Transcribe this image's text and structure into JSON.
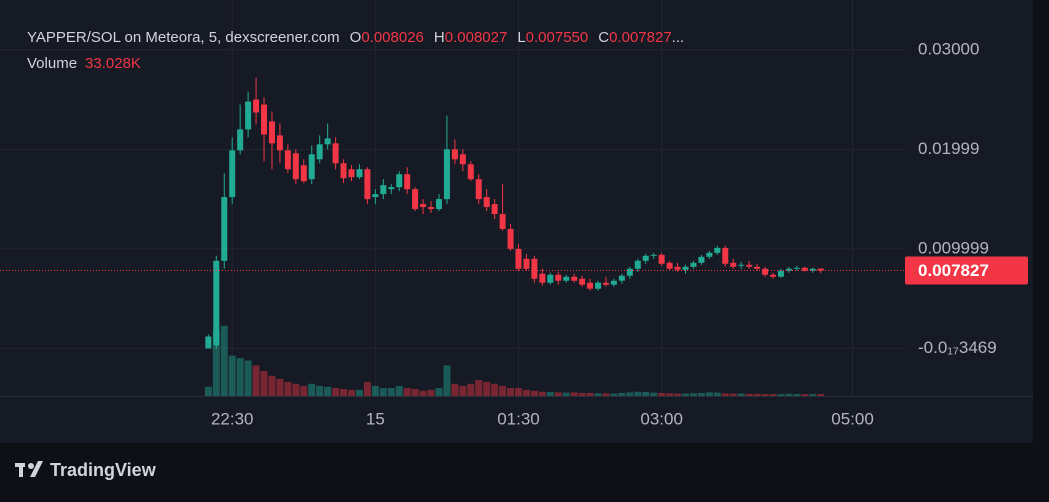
{
  "chart_data": {
    "type": "candlestick",
    "title": "YAPPER/SOL on Meteora, 5, dexscreener.com",
    "ohlc_letters": [
      "O",
      "H",
      "L",
      "C"
    ],
    "ohlc_printed": [
      "0.008026",
      "0.008027",
      "0.007550",
      "0.007827"
    ],
    "ellipsis": "...",
    "up_color": "#22ab94",
    "down_color": "#f23645",
    "x": [
      1335,
      1340,
      1345,
      1350,
      1355,
      1360,
      1365,
      1370,
      1375,
      1380,
      1385,
      1390,
      1395,
      1400,
      1405,
      1410,
      1415,
      1420,
      1425,
      1430,
      1435,
      1440,
      1445,
      1450,
      1455,
      1460,
      1465,
      1470,
      1475,
      1480,
      1485,
      1490,
      1495,
      1500,
      1505,
      1510,
      1515,
      1520,
      1525,
      1530,
      1535,
      1540,
      1545,
      1550,
      1555,
      1560,
      1565,
      1570,
      1575,
      1580,
      1585,
      1590,
      1595,
      1600,
      1605,
      1610,
      1615,
      1620,
      1625,
      1630,
      1635,
      1640,
      1645,
      1650,
      1655,
      1660,
      1665,
      1670,
      1675,
      1680,
      1685,
      1690,
      1695,
      1700,
      1705,
      1710,
      1715,
      1720
    ],
    "open": [
      0,
      0.0003,
      0.0088,
      0.0152,
      0.0199,
      0.022,
      0.025,
      0.0245,
      0.0228,
      0.0214,
      0.0199,
      0.0196,
      0.0184,
      0.017,
      0.019,
      0.0205,
      0.0206,
      0.0186,
      0.018,
      0.0172,
      0.018,
      0.0152,
      0.0155,
      0.016,
      0.0162,
      0.0175,
      0.016,
      0.0145,
      0.0142,
      0.014,
      0.015,
      0.02,
      0.0195,
      0.0185,
      0.017,
      0.0152,
      0.0145,
      0.0135,
      0.012,
      0.01,
      0.009,
      0.009,
      0.0075,
      0.0066,
      0.0074,
      0.0068,
      0.0072,
      0.007,
      0.0066,
      0.006,
      0.0066,
      0.0064,
      0.0068,
      0.0073,
      0.008,
      0.0088,
      0.0093,
      0.0094,
      0.0086,
      0.0082,
      0.0079,
      0.0082,
      0.0086,
      0.0092,
      0.0096,
      0.0101,
      0.0086,
      0.0083,
      0.0084,
      0.0082,
      0.008,
      0.0074,
      0.0072,
      0.0078,
      0.008,
      0.0081,
      0.0078,
      0.008026
    ],
    "high": [
      0.0014,
      0.0093,
      0.0176,
      0.0212,
      0.0245,
      0.0258,
      0.0272,
      0.0252,
      0.0238,
      0.0226,
      0.0205,
      0.02,
      0.019,
      0.0204,
      0.0214,
      0.0226,
      0.0212,
      0.019,
      0.0184,
      0.0185,
      0.0182,
      0.016,
      0.017,
      0.0165,
      0.0178,
      0.0182,
      0.0162,
      0.015,
      0.0148,
      0.0155,
      0.0234,
      0.021,
      0.02,
      0.0188,
      0.0175,
      0.016,
      0.015,
      0.0165,
      0.0125,
      0.0105,
      0.0095,
      0.0093,
      0.008,
      0.0076,
      0.0077,
      0.0074,
      0.0075,
      0.0073,
      0.007,
      0.0068,
      0.0072,
      0.007,
      0.0075,
      0.0082,
      0.009,
      0.0095,
      0.0096,
      0.0096,
      0.0088,
      0.0086,
      0.0084,
      0.0088,
      0.0094,
      0.0098,
      0.0103,
      0.0103,
      0.009,
      0.0087,
      0.0088,
      0.0085,
      0.0082,
      0.0076,
      0.008,
      0.0082,
      0.0083,
      0.0082,
      0.0081,
      0.008027
    ],
    "low": [
      0,
      0,
      0.008,
      0.0145,
      0.0195,
      0.0212,
      0.0225,
      0.0188,
      0.018,
      0.0186,
      0.0176,
      0.0165,
      0.0166,
      0.0165,
      0.0186,
      0.02,
      0.018,
      0.0166,
      0.0168,
      0.017,
      0.0145,
      0.0145,
      0.015,
      0.0155,
      0.0158,
      0.0155,
      0.0138,
      0.0135,
      0.0136,
      0.0138,
      0.0145,
      0.0185,
      0.0178,
      0.0168,
      0.0145,
      0.0138,
      0.013,
      0.0118,
      0.0098,
      0.0078,
      0.0078,
      0.0066,
      0.0063,
      0.0064,
      0.0064,
      0.0066,
      0.0066,
      0.0062,
      0.0058,
      0.0058,
      0.0062,
      0.0062,
      0.0065,
      0.007,
      0.0077,
      0.0085,
      0.009,
      0.0083,
      0.0078,
      0.0077,
      0.0075,
      0.008,
      0.0084,
      0.009,
      0.0094,
      0.0082,
      0.008,
      0.008,
      0.008,
      0.0078,
      0.0072,
      0.007,
      0.0071,
      0.0076,
      0.0078,
      0.0077,
      0.0076,
      0.00755
    ],
    "close": [
      0.0012,
      0.0088,
      0.0152,
      0.0199,
      0.022,
      0.0248,
      0.0237,
      0.0215,
      0.0206,
      0.0199,
      0.018,
      0.017,
      0.0168,
      0.0195,
      0.0205,
      0.0211,
      0.0186,
      0.0171,
      0.0172,
      0.018,
      0.015,
      0.0155,
      0.0164,
      0.0162,
      0.0175,
      0.016,
      0.014,
      0.0142,
      0.014,
      0.015,
      0.02,
      0.019,
      0.0185,
      0.017,
      0.015,
      0.0142,
      0.0135,
      0.012,
      0.01,
      0.008,
      0.008,
      0.007,
      0.0066,
      0.0074,
      0.0068,
      0.0072,
      0.0068,
      0.0064,
      0.006,
      0.0066,
      0.0064,
      0.0068,
      0.0073,
      0.008,
      0.0088,
      0.0093,
      0.0094,
      0.0085,
      0.008,
      0.0079,
      0.0082,
      0.0086,
      0.0092,
      0.0096,
      0.0101,
      0.0085,
      0.0082,
      0.0084,
      0.0082,
      0.008,
      0.0074,
      0.0072,
      0.0078,
      0.008,
      0.0081,
      0.0078,
      0.008,
      0.007827
    ],
    "volume": {
      "name": "Volume",
      "last_label": "33.028K",
      "ylim": [
        0,
        1800000
      ],
      "values": [
        150000,
        1070000,
        1150000,
        660000,
        620000,
        580000,
        500000,
        410000,
        330000,
        280000,
        230000,
        200000,
        165000,
        200000,
        165000,
        150000,
        130000,
        115000,
        100000,
        100000,
        230000,
        165000,
        130000,
        130000,
        165000,
        130000,
        115000,
        85000,
        100000,
        130000,
        500000,
        200000,
        165000,
        200000,
        260000,
        230000,
        200000,
        165000,
        130000,
        130000,
        100000,
        85000,
        70000,
        66000,
        60000,
        55000,
        60000,
        50000,
        50000,
        45000,
        45000,
        40000,
        50000,
        60000,
        70000,
        66000,
        55000,
        50000,
        45000,
        40000,
        40000,
        45000,
        50000,
        60000,
        55000,
        45000,
        40000,
        40000,
        35000,
        35000,
        33000,
        33000,
        30000,
        35000,
        33000,
        30000,
        31000,
        33028
      ]
    },
    "xlim": [
      1204,
      1773
    ],
    "xticks": [
      {
        "value": 1350,
        "label": "22:30"
      },
      {
        "value": 1440,
        "label": "15"
      },
      {
        "value": 1530,
        "label": "01:30"
      },
      {
        "value": 1620,
        "label": "03:00"
      },
      {
        "value": 1740,
        "label": "05:00"
      }
    ],
    "ylim": [
      -0.00478,
      0.035
    ],
    "yticks": [
      {
        "value": 0.03,
        "label": "0.03000"
      },
      0.01999,
      0.009999,
      {
        "value": -3.469e-18,
        "label": "-0.0₁₇3469"
      }
    ],
    "grid": true
  },
  "footer": {
    "brand": "TradingView"
  }
}
